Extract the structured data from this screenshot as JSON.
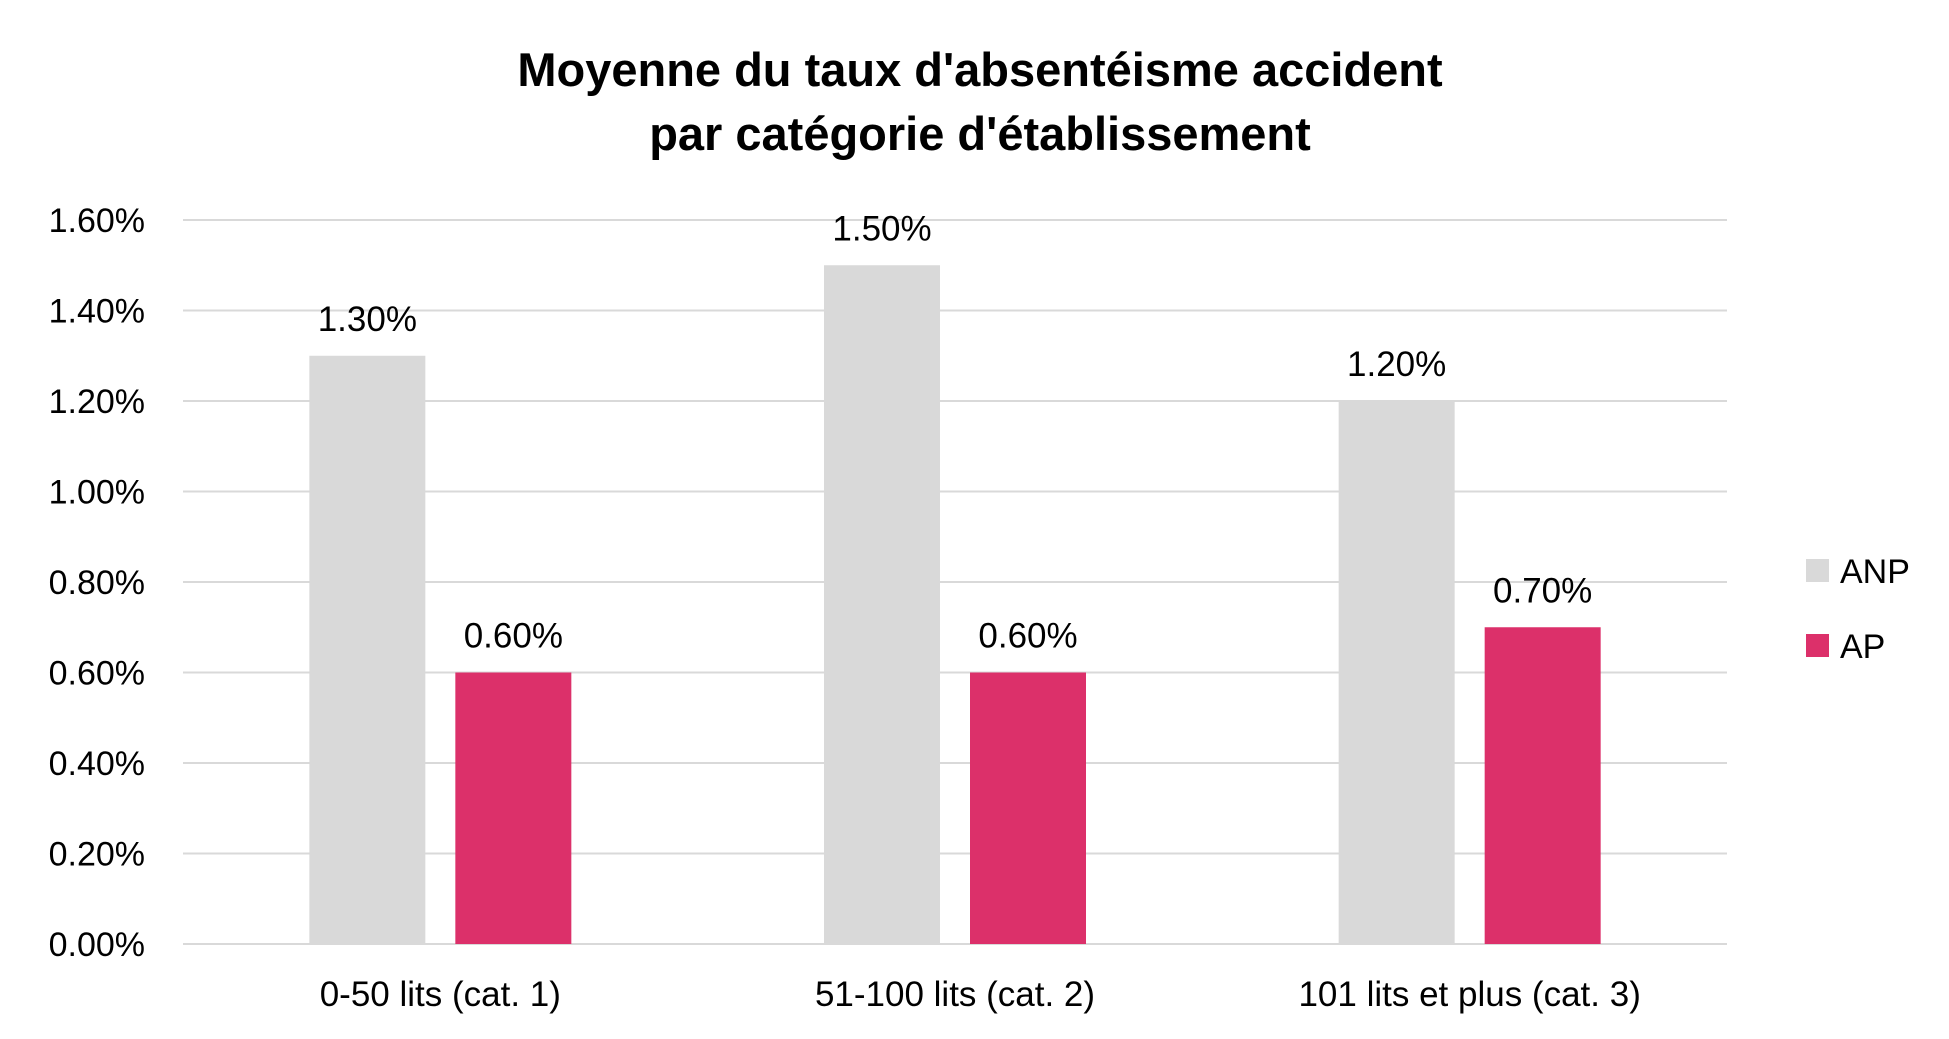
{
  "chart_data": {
    "type": "bar",
    "title": "Moyenne du taux d'absentéisme accident",
    "subtitle": "par catégorie d'établissement",
    "categories": [
      "0-50 lits (cat. 1)",
      "51-100 lits (cat. 2)",
      "101 lits et plus (cat. 3)"
    ],
    "series": [
      {
        "name": "ANP",
        "values": [
          1.3,
          1.5,
          1.2
        ],
        "labels": [
          "1.30%",
          "1.50%",
          "1.20%"
        ],
        "color": "#d9d9d9"
      },
      {
        "name": "AP",
        "values": [
          0.6,
          0.6,
          0.7
        ],
        "labels": [
          "0.60%",
          "0.60%",
          "0.70%"
        ],
        "color": "#dc306a"
      }
    ],
    "y_ticks": [
      "0.00%",
      "0.20%",
      "0.40%",
      "0.60%",
      "0.80%",
      "1.00%",
      "1.20%",
      "1.40%",
      "1.60%"
    ],
    "ylim": [
      0,
      1.6
    ],
    "grid": true,
    "legend_position": "right"
  }
}
